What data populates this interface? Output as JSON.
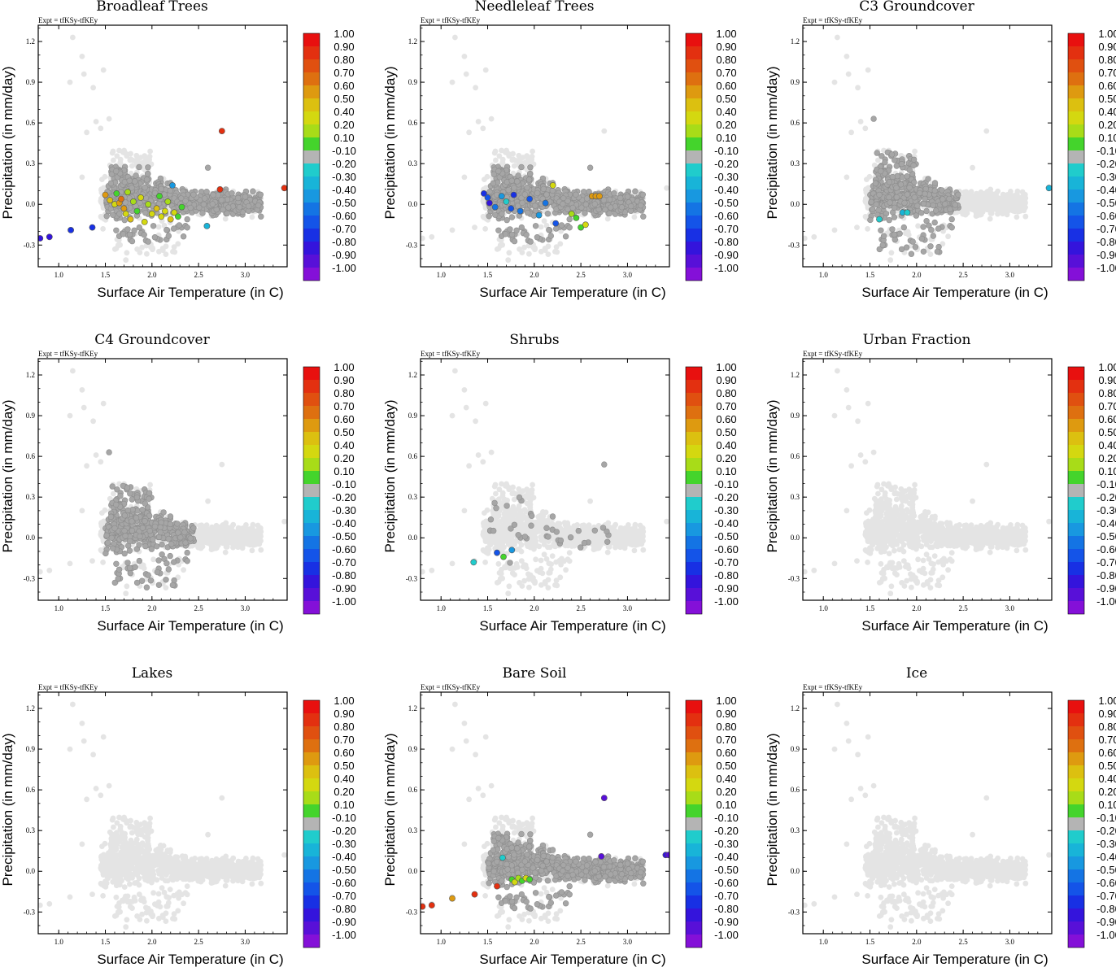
{
  "figure": {
    "expt_label": "Expt = tfKSy-tfKEy",
    "xlabel": "Surface Air Temperature (in C)",
    "ylabel": "Precipitation (in mm/day)",
    "xlim": [
      0.78,
      3.45
    ],
    "ylim": [
      -0.46,
      1.32
    ],
    "xticks": [
      "1.0",
      "1.5",
      "2.0",
      "2.5",
      "3.0"
    ],
    "xtick_values": [
      1.0,
      1.5,
      2.0,
      2.5,
      3.0
    ],
    "yticks": [
      "1.2",
      "0.9",
      "0.6",
      "0.3",
      "0.0",
      "-0.3"
    ],
    "ytick_values": [
      1.2,
      0.9,
      0.6,
      0.3,
      0.0,
      -0.3
    ]
  },
  "colorbar": {
    "labels": [
      "1.00",
      "0.90",
      "0.80",
      "0.70",
      "0.60",
      "0.50",
      "0.40",
      "0.20",
      "0.10",
      "-0.10",
      "-0.20",
      "-0.30",
      "-0.40",
      "-0.50",
      "-0.60",
      "-0.70",
      "-0.80",
      "-0.90",
      "-1.00"
    ],
    "colors": [
      "#e8100f",
      "#e33010",
      "#e05010",
      "#de7010",
      "#de9a10",
      "#dcc010",
      "#d4d810",
      "#a8dc18",
      "#44d42c",
      "#b4b4b4",
      "#20cccc",
      "#18b4d8",
      "#1898e0",
      "#1474e4",
      "#1454e8",
      "#1830e4",
      "#3414dc",
      "#5810d8",
      "#8410d8"
    ]
  },
  "background_colors": {
    "light": "#e4e4e4",
    "dark": "#a6a6a6"
  },
  "chart_data": [
    {
      "type": "scatter",
      "title": "Broadleaf Trees",
      "dark": "band",
      "colored": [
        {
          "x": 0.8,
          "y": -0.25,
          "v": -0.85
        },
        {
          "x": 0.9,
          "y": -0.24,
          "v": -0.8
        },
        {
          "x": 1.13,
          "y": -0.19,
          "v": -0.7
        },
        {
          "x": 1.36,
          "y": -0.17,
          "v": -0.7
        },
        {
          "x": 1.5,
          "y": 0.07,
          "v": 0.6
        },
        {
          "x": 1.55,
          "y": 0.03,
          "v": 0.5
        },
        {
          "x": 1.6,
          "y": 0.0,
          "v": 0.3
        },
        {
          "x": 1.62,
          "y": 0.08,
          "v": 0.1
        },
        {
          "x": 1.65,
          "y": 0.01,
          "v": 0.6
        },
        {
          "x": 1.67,
          "y": 0.04,
          "v": 0.7
        },
        {
          "x": 1.7,
          "y": -0.03,
          "v": 0.6
        },
        {
          "x": 1.72,
          "y": -0.07,
          "v": 0.4
        },
        {
          "x": 1.74,
          "y": 0.09,
          "v": 0.2
        },
        {
          "x": 1.77,
          "y": -0.11,
          "v": 0.5
        },
        {
          "x": 1.8,
          "y": 0.02,
          "v": 0.2
        },
        {
          "x": 1.84,
          "y": -0.05,
          "v": 0.1
        },
        {
          "x": 1.88,
          "y": 0.05,
          "v": 0.3
        },
        {
          "x": 1.92,
          "y": -0.13,
          "v": 0.4
        },
        {
          "x": 1.96,
          "y": 0.0,
          "v": 0.15
        },
        {
          "x": 2.0,
          "y": -0.07,
          "v": 0.4
        },
        {
          "x": 2.05,
          "y": -0.03,
          "v": 0.5
        },
        {
          "x": 2.08,
          "y": 0.06,
          "v": 0.1
        },
        {
          "x": 2.1,
          "y": -0.09,
          "v": 0.3
        },
        {
          "x": 2.14,
          "y": -0.05,
          "v": 0.4
        },
        {
          "x": 2.17,
          "y": 0.02,
          "v": 0.2
        },
        {
          "x": 2.2,
          "y": -0.11,
          "v": 0.5
        },
        {
          "x": 2.24,
          "y": -0.06,
          "v": 0.3
        },
        {
          "x": 2.28,
          "y": -0.09,
          "v": 0.1
        },
        {
          "x": 2.32,
          "y": -0.02,
          "v": 0.1
        },
        {
          "x": 2.22,
          "y": 0.14,
          "v": -0.4
        },
        {
          "x": 2.59,
          "y": -0.16,
          "v": -0.3
        },
        {
          "x": 2.75,
          "y": 0.54,
          "v": 0.9
        },
        {
          "x": 2.73,
          "y": 0.11,
          "v": 0.9
        },
        {
          "x": 3.42,
          "y": 0.12,
          "v": 0.9
        }
      ]
    },
    {
      "type": "scatter",
      "title": "Needleleaf Trees",
      "dark": "band",
      "colored": [
        {
          "x": 1.46,
          "y": 0.08,
          "v": -0.7
        },
        {
          "x": 1.5,
          "y": 0.05,
          "v": -0.6
        },
        {
          "x": 1.52,
          "y": 0.01,
          "v": -0.8
        },
        {
          "x": 1.58,
          "y": -0.02,
          "v": -0.5
        },
        {
          "x": 1.65,
          "y": 0.06,
          "v": -0.4
        },
        {
          "x": 1.7,
          "y": 0.02,
          "v": -0.2
        },
        {
          "x": 1.75,
          "y": -0.03,
          "v": -0.6
        },
        {
          "x": 1.78,
          "y": 0.07,
          "v": -0.7
        },
        {
          "x": 1.85,
          "y": -0.05,
          "v": -0.5
        },
        {
          "x": 1.95,
          "y": 0.04,
          "v": -0.6
        },
        {
          "x": 2.05,
          "y": -0.08,
          "v": -0.4
        },
        {
          "x": 2.12,
          "y": 0.01,
          "v": -0.5
        },
        {
          "x": 2.2,
          "y": 0.14,
          "v": 0.4
        },
        {
          "x": 2.23,
          "y": -0.14,
          "v": -0.6
        },
        {
          "x": 2.4,
          "y": -0.07,
          "v": 0.15
        },
        {
          "x": 2.45,
          "y": -0.1,
          "v": 0.1
        },
        {
          "x": 2.5,
          "y": -0.17,
          "v": 0.1
        },
        {
          "x": 2.55,
          "y": -0.15,
          "v": 0.3
        },
        {
          "x": 2.62,
          "y": 0.06,
          "v": 0.6
        },
        {
          "x": 2.66,
          "y": 0.06,
          "v": 0.55
        },
        {
          "x": 2.7,
          "y": 0.06,
          "v": 0.6
        }
      ]
    },
    {
      "type": "scatter",
      "title": "C3 Groundcover",
      "dark": "cluster",
      "colored": [
        {
          "x": 1.6,
          "y": -0.11,
          "v": -0.2
        },
        {
          "x": 1.85,
          "y": -0.06,
          "v": -0.3
        },
        {
          "x": 1.9,
          "y": -0.06,
          "v": -0.2
        },
        {
          "x": 3.42,
          "y": 0.12,
          "v": -0.3
        }
      ]
    },
    {
      "type": "scatter",
      "title": "C4 Groundcover",
      "dark": "cluster",
      "colored": []
    },
    {
      "type": "scatter",
      "title": "Shrubs",
      "dark": "sparse",
      "colored": [
        {
          "x": 1.35,
          "y": -0.18,
          "v": -0.2
        },
        {
          "x": 1.6,
          "y": -0.11,
          "v": -0.6
        },
        {
          "x": 1.67,
          "y": -0.14,
          "v": 0.1
        },
        {
          "x": 1.76,
          "y": -0.09,
          "v": -0.4
        }
      ]
    },
    {
      "type": "scatter",
      "title": "Urban Fraction",
      "dark": "none",
      "colored": []
    },
    {
      "type": "scatter",
      "title": "Lakes",
      "dark": "none",
      "colored": []
    },
    {
      "type": "scatter",
      "title": "Bare Soil",
      "dark": "band",
      "colored": [
        {
          "x": 0.8,
          "y": -0.26,
          "v": 0.9
        },
        {
          "x": 0.9,
          "y": -0.25,
          "v": 0.9
        },
        {
          "x": 1.12,
          "y": -0.2,
          "v": 0.6
        },
        {
          "x": 1.36,
          "y": -0.17,
          "v": 0.9
        },
        {
          "x": 1.6,
          "y": -0.11,
          "v": 0.9
        },
        {
          "x": 1.66,
          "y": 0.1,
          "v": -0.2
        },
        {
          "x": 1.76,
          "y": -0.06,
          "v": 0.1
        },
        {
          "x": 1.79,
          "y": -0.08,
          "v": 0.3
        },
        {
          "x": 1.83,
          "y": -0.05,
          "v": 0.2
        },
        {
          "x": 1.87,
          "y": -0.07,
          "v": 0.1
        },
        {
          "x": 1.91,
          "y": -0.05,
          "v": 0.3
        },
        {
          "x": 1.95,
          "y": -0.06,
          "v": 0.1
        },
        {
          "x": 2.75,
          "y": 0.54,
          "v": -0.9
        },
        {
          "x": 2.72,
          "y": 0.11,
          "v": -0.9
        },
        {
          "x": 3.41,
          "y": 0.12,
          "v": -0.8
        },
        {
          "x": 3.44,
          "y": 0.12,
          "v": -0.9
        }
      ]
    },
    {
      "type": "scatter",
      "title": "Ice",
      "dark": "none",
      "colored": []
    }
  ]
}
